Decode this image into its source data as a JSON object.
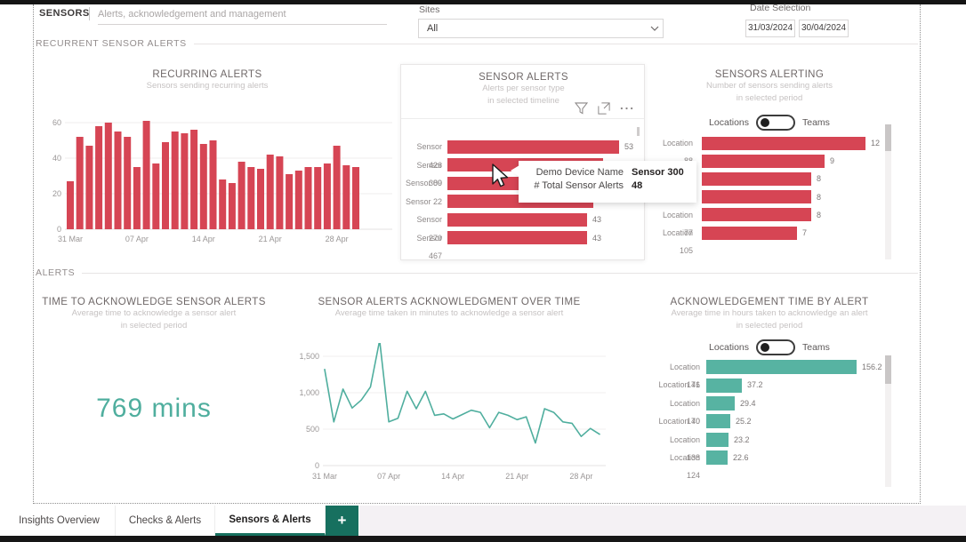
{
  "header": {
    "app_title": "SENSORS",
    "app_subtitle": "Alerts, acknowledgement and management",
    "sites_label": "Sites",
    "sites_value": "All",
    "date_selection_label": "Date Selection",
    "date_from": "31/03/2024",
    "date_to": "30/04/2024"
  },
  "sections": {
    "recurrent": "RECURRENT SENSOR ALERTS",
    "alerts": "ALERTS"
  },
  "colors": {
    "red": "#d64554",
    "teal": "#57b3a2",
    "dark_teal": "#17705f",
    "kpi_teal": "#4fae9e"
  },
  "chart_data": [
    {
      "id": "recurring-alerts",
      "type": "bar",
      "title": "RECURRING ALERTS",
      "subtitle": "Sensors sending recurring alerts",
      "values": [
        27,
        52,
        47,
        58,
        60,
        55,
        52,
        35,
        61,
        37,
        49,
        55,
        54,
        56,
        48,
        50,
        28,
        26,
        38,
        35,
        34,
        42,
        41,
        31,
        33,
        35,
        35,
        37,
        47,
        36,
        35
      ],
      "x_tick_labels": [
        "31 Mar",
        "07 Apr",
        "14 Apr",
        "21 Apr",
        "28 Apr"
      ],
      "x_tick_indices": [
        0,
        7,
        14,
        21,
        28
      ],
      "y_ticks": [
        0,
        20,
        40,
        60
      ],
      "ylim": [
        0,
        65
      ],
      "bar_color": "#d64554"
    },
    {
      "id": "sensor-alerts",
      "type": "bar-horizontal",
      "title": "SENSOR ALERTS",
      "subtitle_line1": "Alerts per sensor type",
      "subtitle_line2": "in selected timeline",
      "rows": [
        {
          "label": "Sensor 426",
          "value": 53,
          "value_label": "53"
        },
        {
          "label": "Sensor 300",
          "value": 48,
          "value_label": ""
        },
        {
          "label": "Sensor 89",
          "value": 46,
          "value_label": ""
        },
        {
          "label": "Sensor 22",
          "value": 45,
          "value_label": ""
        },
        {
          "label": "Sensor 270",
          "value": 43,
          "value_label": "43"
        },
        {
          "label": "Sensor 467",
          "value": 43,
          "value_label": "43"
        }
      ],
      "note": "Value labels of Sensor 300/89/22 are occluded by the hover tooltip; Sensor 300 = 48 per tooltip",
      "bar_color": "#d64554"
    },
    {
      "id": "sensors-alerting",
      "type": "bar-horizontal",
      "title": "SENSORS ALERTING",
      "subtitle_line1": "Number of sensors sending alerts",
      "subtitle_line2": "in selected period",
      "toggle": {
        "left": "Locations",
        "right": "Teams",
        "selected": "Locations"
      },
      "rows": [
        {
          "label": "Location 88",
          "value": 12,
          "value_label": "12"
        },
        {
          "label": "",
          "value": 9,
          "value_label": "9"
        },
        {
          "label": "",
          "value": 8,
          "value_label": "8"
        },
        {
          "label": "",
          "value": 8,
          "value_label": "8"
        },
        {
          "label": "Location 77",
          "value": 8,
          "value_label": "8"
        },
        {
          "label": "Location 105",
          "value": 7,
          "value_label": "7"
        }
      ],
      "note": "Category labels of rows 2-4 are occluded by the hover tooltip",
      "bar_color": "#d64554"
    },
    {
      "id": "time-to-acknowledge",
      "type": "kpi",
      "title": "TIME TO ACKNOWLEDGE SENSOR ALERTS",
      "subtitle_line1": "Average time to acknowledge a sensor alert",
      "subtitle_line2": "in selected period",
      "value": "769 mins"
    },
    {
      "id": "ack-over-time",
      "type": "line",
      "title": "SENSOR ALERTS ACKNOWLEDGMENT OVER TIME",
      "subtitle_line1": "Average time taken in minutes to acknowledge a sensor alert",
      "values": [
        1320,
        600,
        1050,
        790,
        900,
        1080,
        1720,
        600,
        650,
        1020,
        780,
        1020,
        690,
        710,
        640,
        700,
        760,
        730,
        520,
        730,
        690,
        630,
        670,
        310,
        780,
        730,
        600,
        580,
        400,
        510,
        430
      ],
      "x_tick_labels": [
        "31 Mar",
        "07 Apr",
        "14 Apr",
        "21 Apr",
        "28 Apr"
      ],
      "x_tick_indices": [
        0,
        7,
        14,
        21,
        28
      ],
      "y_tick_labels": [
        "0",
        "500",
        "1,000",
        "1,500"
      ],
      "y_tick_values": [
        0,
        500,
        1000,
        1500
      ],
      "ylim": [
        0,
        1800
      ],
      "line_color": "#4fae9e"
    },
    {
      "id": "ack-time-by-alert",
      "type": "bar-horizontal",
      "title": "ACKNOWLEDGEMENT TIME BY ALERT",
      "subtitle_line1": "Average time in hours taken to acknowledge an alert",
      "subtitle_line2": "in selected period",
      "toggle": {
        "left": "Locations",
        "right": "Teams",
        "selected": "Locations"
      },
      "rows": [
        {
          "label": "Location 171",
          "value": 156.2,
          "value_label": "156.2"
        },
        {
          "label": "Location 46",
          "value": 37.2,
          "value_label": "37.2"
        },
        {
          "label": "Location 170",
          "value": 29.4,
          "value_label": "29.4"
        },
        {
          "label": "Location 40",
          "value": 25.2,
          "value_label": "25.2"
        },
        {
          "label": "Location 138",
          "value": 23.2,
          "value_label": "23.2"
        },
        {
          "label": "Location 124",
          "value": 22.6,
          "value_label": "22.6"
        }
      ],
      "bar_color": "#57b3a2"
    }
  ],
  "tooltip": {
    "rows": [
      {
        "label": "Demo Device Name",
        "value": "Sensor 300"
      },
      {
        "label": "# Total Sensor Alerts",
        "value": "48"
      }
    ]
  },
  "tabs": {
    "items": [
      {
        "label": "Insights Overview",
        "active": false
      },
      {
        "label": "Checks & Alerts",
        "active": false
      },
      {
        "label": "Sensors & Alerts",
        "active": true
      }
    ],
    "add_label": "+"
  }
}
